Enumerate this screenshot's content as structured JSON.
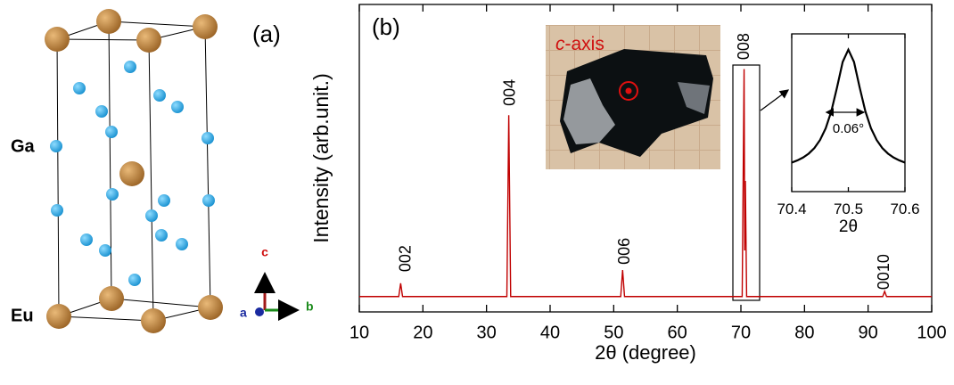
{
  "structure_panel": {
    "label": "(a)",
    "atoms": [
      "Ga",
      "Eu"
    ],
    "axes": [
      "c",
      "a",
      "b"
    ]
  },
  "photo_label": {
    "italic": "c",
    "rest": "-axis"
  },
  "chart_data": [
    {
      "type": "line",
      "panel_label": "(b)",
      "xlabel": "2θ (degree)",
      "ylabel": "Intensity (arb.unit.)",
      "xlim": [
        10,
        100
      ],
      "ylim": [
        0,
        100
      ],
      "xticks": [
        10,
        20,
        30,
        40,
        50,
        60,
        70,
        80,
        90,
        100
      ],
      "x": [
        10,
        16.2,
        16.5,
        16.8,
        33.2,
        33.5,
        33.8,
        51.1,
        51.4,
        51.7,
        70.2,
        70.5,
        70.6,
        70.7,
        70.9,
        92.3,
        92.6,
        92.9,
        100
      ],
      "series": [
        {
          "color": "#c00000",
          "values": [
            5,
            5,
            9.3,
            5,
            5,
            64,
            5,
            5,
            13.6,
            5,
            5,
            79,
            20,
            42.6,
            5,
            5,
            6.7,
            5,
            5
          ]
        }
      ],
      "annotations": [
        {
          "text": "002",
          "x": 17.4,
          "y": 13
        },
        {
          "text": "004",
          "x": 33.8,
          "y": 67
        },
        {
          "text": "006",
          "x": 51.8,
          "y": 15.4
        },
        {
          "text": "008",
          "x": 70.6,
          "y": 82
        },
        {
          "text": "0010",
          "x": 92.6,
          "y": 7.2
        }
      ]
    },
    {
      "type": "line",
      "xlabel": "2θ",
      "xlim": [
        70.4,
        70.6
      ],
      "ylim": [
        0,
        100
      ],
      "xticks": [
        70.4,
        70.5,
        70.6
      ],
      "x": [
        70.4,
        70.41,
        70.42,
        70.43,
        70.44,
        70.45,
        70.46,
        70.47,
        70.48,
        70.49,
        70.5,
        70.51,
        70.52,
        70.53,
        70.54,
        70.55,
        70.56,
        70.57,
        70.58,
        70.59,
        70.6
      ],
      "series": [
        {
          "color": "#000000",
          "values": [
            18.4,
            19.8,
            21.6,
            24.1,
            27.6,
            32.7,
            40.1,
            51,
            66,
            82.2,
            90,
            82.2,
            66,
            51,
            40.1,
            32.7,
            27.6,
            24.1,
            21.6,
            19.8,
            18.4
          ]
        }
      ],
      "annotations": [
        {
          "text": "0.06°"
        }
      ]
    }
  ]
}
